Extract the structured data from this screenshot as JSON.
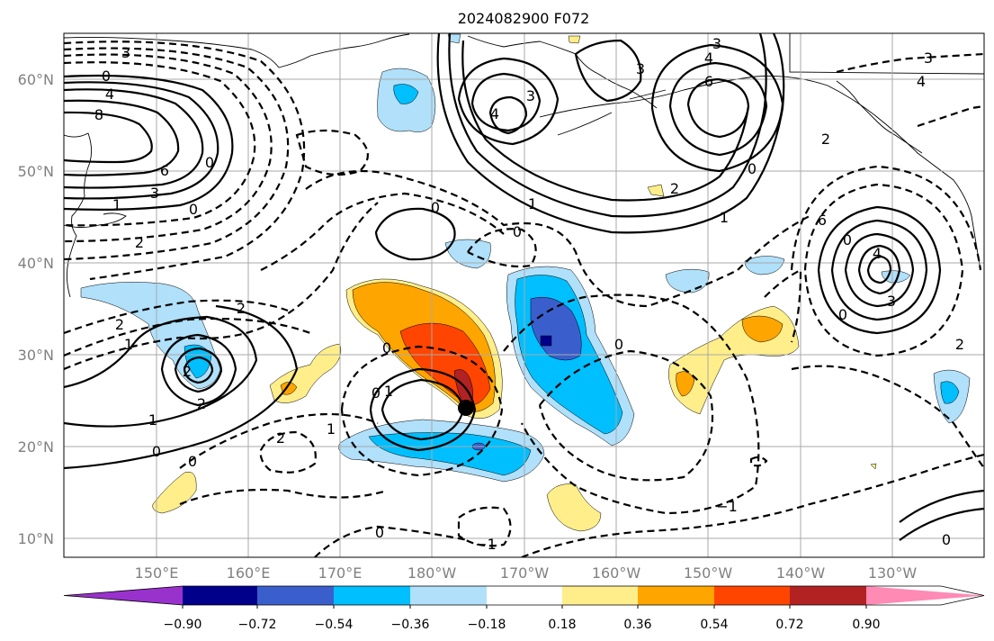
{
  "title": "2024082900 F072",
  "lat_labels": [
    "60°N",
    "50°N",
    "40°N",
    "30°N",
    "20°N",
    "10°N"
  ],
  "lon_labels": [
    "150°E",
    "160°E",
    "170°E",
    "180°W",
    "170°W",
    "160°W",
    "150°W",
    "140°W",
    "130°W"
  ],
  "colorbar": {
    "colors": [
      "#9932cc",
      "#00008b",
      "#3a5fcd",
      "#00bfff",
      "#b0e0fa",
      "#ffffff",
      "#ffee8a",
      "#ffa500",
      "#ff4500",
      "#b22222",
      "#ff8ab4"
    ],
    "tick_labels": [
      "−0.90",
      "−0.72",
      "−0.54",
      "−0.36",
      "−0.18",
      "0.18",
      "0.36",
      "0.54",
      "0.72",
      "0.90"
    ]
  },
  "contour_labels": [
    "3",
    "0",
    "4",
    "8",
    "6",
    "3",
    "1",
    "0",
    "2",
    "0",
    "2",
    "2",
    "1",
    "0",
    "2",
    "0",
    "1",
    "0",
    "0",
    "2",
    "1",
    "1",
    "0",
    "2",
    "0",
    "−1",
    "0",
    "3",
    "4",
    "6",
    "4",
    "3",
    "3",
    "1",
    "2",
    "0",
    "1",
    "2",
    "3",
    "4",
    "0",
    "6",
    "4",
    "3",
    "0",
    "2",
    "0",
    "−1",
    "0"
  ],
  "storm_marker": "tropical cyclone center"
}
